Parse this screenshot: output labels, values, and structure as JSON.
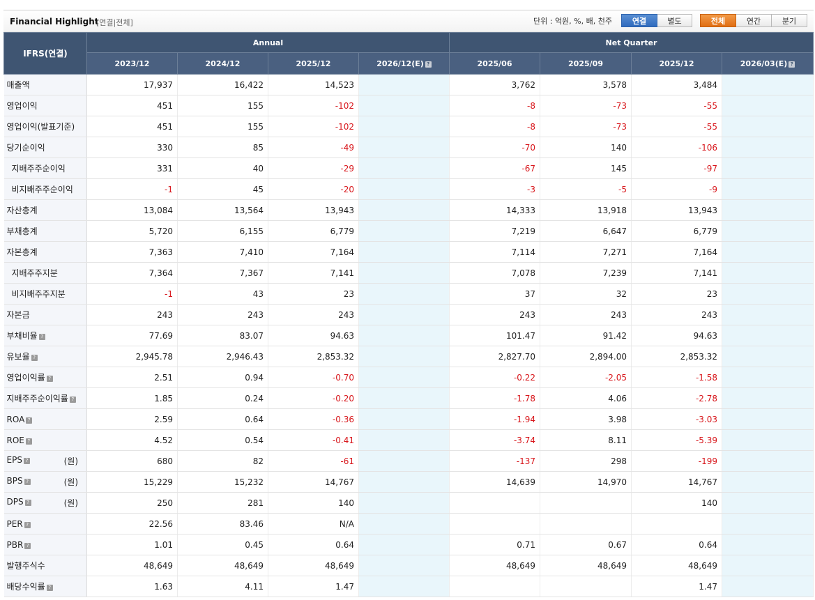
{
  "header": {
    "title": "Financial Highlight",
    "subtitle": "[연결|전체]",
    "unit_text": "단위 : 억원, %, 배, 천주",
    "basis_buttons": [
      "연결",
      "별도"
    ],
    "period_buttons": [
      "전체",
      "연간",
      "분기"
    ]
  },
  "table": {
    "corner": "IFRS(연결)",
    "annual_label": "Annual",
    "quarter_label": "Net Quarter",
    "columns": [
      "2023/12",
      "2024/12",
      "2025/12",
      "2026/12(E)",
      "2025/06",
      "2025/09",
      "2025/12",
      "2026/03(E)"
    ],
    "rows": [
      {
        "label": "매출액",
        "indent": false,
        "help": false,
        "unit": "",
        "values": [
          "17,937",
          "16,422",
          "14,523",
          "",
          "3,762",
          "3,578",
          "3,484",
          ""
        ]
      },
      {
        "label": "영업이익",
        "indent": false,
        "help": false,
        "unit": "",
        "values": [
          "451",
          "155",
          "-102",
          "",
          "-8",
          "-73",
          "-55",
          ""
        ]
      },
      {
        "label": "영업이익(발표기준)",
        "indent": false,
        "help": false,
        "unit": "",
        "values": [
          "451",
          "155",
          "-102",
          "",
          "-8",
          "-73",
          "-55",
          ""
        ]
      },
      {
        "label": "당기순이익",
        "indent": false,
        "help": false,
        "unit": "",
        "values": [
          "330",
          "85",
          "-49",
          "",
          "-70",
          "140",
          "-106",
          ""
        ]
      },
      {
        "label": "지배주주순이익",
        "indent": true,
        "help": false,
        "unit": "",
        "values": [
          "331",
          "40",
          "-29",
          "",
          "-67",
          "145",
          "-97",
          ""
        ]
      },
      {
        "label": "비지배주주순이익",
        "indent": true,
        "help": false,
        "unit": "",
        "values": [
          "-1",
          "45",
          "-20",
          "",
          "-3",
          "-5",
          "-9",
          ""
        ]
      },
      {
        "label": "자산총계",
        "indent": false,
        "help": false,
        "unit": "",
        "values": [
          "13,084",
          "13,564",
          "13,943",
          "",
          "14,333",
          "13,918",
          "13,943",
          ""
        ]
      },
      {
        "label": "부채총계",
        "indent": false,
        "help": false,
        "unit": "",
        "values": [
          "5,720",
          "6,155",
          "6,779",
          "",
          "7,219",
          "6,647",
          "6,779",
          ""
        ]
      },
      {
        "label": "자본총계",
        "indent": false,
        "help": false,
        "unit": "",
        "values": [
          "7,363",
          "7,410",
          "7,164",
          "",
          "7,114",
          "7,271",
          "7,164",
          ""
        ]
      },
      {
        "label": "지배주주지분",
        "indent": true,
        "help": false,
        "unit": "",
        "values": [
          "7,364",
          "7,367",
          "7,141",
          "",
          "7,078",
          "7,239",
          "7,141",
          ""
        ]
      },
      {
        "label": "비지배주주지분",
        "indent": true,
        "help": false,
        "unit": "",
        "values": [
          "-1",
          "43",
          "23",
          "",
          "37",
          "32",
          "23",
          ""
        ]
      },
      {
        "label": "자본금",
        "indent": false,
        "help": false,
        "unit": "",
        "values": [
          "243",
          "243",
          "243",
          "",
          "243",
          "243",
          "243",
          ""
        ]
      },
      {
        "label": "부채비율",
        "indent": false,
        "help": true,
        "unit": "",
        "values": [
          "77.69",
          "83.07",
          "94.63",
          "",
          "101.47",
          "91.42",
          "94.63",
          ""
        ]
      },
      {
        "label": "유보율",
        "indent": false,
        "help": true,
        "unit": "",
        "values": [
          "2,945.78",
          "2,946.43",
          "2,853.32",
          "",
          "2,827.70",
          "2,894.00",
          "2,853.32",
          ""
        ]
      },
      {
        "label": "영업이익률",
        "indent": false,
        "help": true,
        "unit": "",
        "values": [
          "2.51",
          "0.94",
          "-0.70",
          "",
          "-0.22",
          "-2.05",
          "-1.58",
          ""
        ]
      },
      {
        "label": "지배주주순이익률",
        "indent": false,
        "help": true,
        "unit": "",
        "values": [
          "1.85",
          "0.24",
          "-0.20",
          "",
          "-1.78",
          "4.06",
          "-2.78",
          ""
        ]
      },
      {
        "label": "ROA",
        "indent": false,
        "help": true,
        "unit": "",
        "values": [
          "2.59",
          "0.64",
          "-0.36",
          "",
          "-1.94",
          "3.98",
          "-3.03",
          ""
        ]
      },
      {
        "label": "ROE",
        "indent": false,
        "help": true,
        "unit": "",
        "values": [
          "4.52",
          "0.54",
          "-0.41",
          "",
          "-3.74",
          "8.11",
          "-5.39",
          ""
        ]
      },
      {
        "label": "EPS",
        "indent": false,
        "help": true,
        "unit": "(원)",
        "values": [
          "680",
          "82",
          "-61",
          "",
          "-137",
          "298",
          "-199",
          ""
        ]
      },
      {
        "label": "BPS",
        "indent": false,
        "help": true,
        "unit": "(원)",
        "values": [
          "15,229",
          "15,232",
          "14,767",
          "",
          "14,639",
          "14,970",
          "14,767",
          ""
        ]
      },
      {
        "label": "DPS",
        "indent": false,
        "help": true,
        "unit": "(원)",
        "values": [
          "250",
          "281",
          "140",
          "",
          "",
          "",
          "140",
          ""
        ]
      },
      {
        "label": "PER",
        "indent": false,
        "help": true,
        "unit": "",
        "values": [
          "22.56",
          "83.46",
          "N/A",
          "",
          "",
          "",
          "",
          ""
        ]
      },
      {
        "label": "PBR",
        "indent": false,
        "help": true,
        "unit": "",
        "values": [
          "1.01",
          "0.45",
          "0.64",
          "",
          "0.71",
          "0.67",
          "0.64",
          ""
        ]
      },
      {
        "label": "발행주식수",
        "indent": false,
        "help": false,
        "unit": "",
        "values": [
          "48,649",
          "48,649",
          "48,649",
          "",
          "48,649",
          "48,649",
          "48,649",
          ""
        ]
      },
      {
        "label": "배당수익률",
        "indent": false,
        "help": true,
        "unit": "",
        "values": [
          "1.63",
          "4.11",
          "1.47",
          "",
          "",
          "",
          "1.47",
          ""
        ]
      }
    ],
    "estimate_columns": [
      3,
      7
    ]
  }
}
